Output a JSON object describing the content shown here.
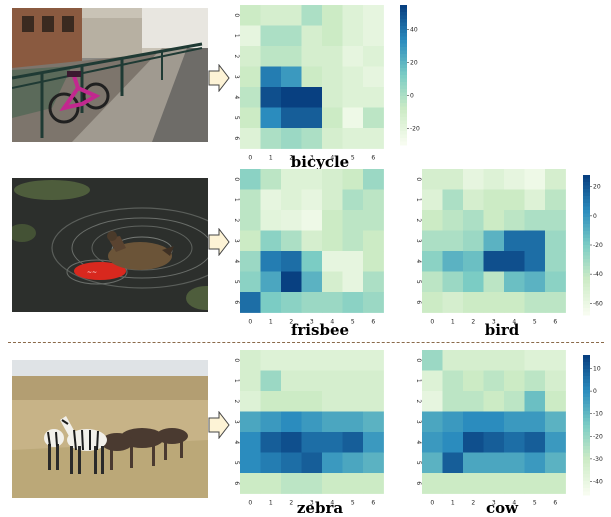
{
  "colors": {
    "low": "#f7fcf0",
    "mid1": "#ccebc5",
    "mid2": "#7bccc4",
    "mid3": "#2b8cbe",
    "high": "#084081"
  },
  "photos": [
    {
      "name": "bicycle-photo-icon"
    },
    {
      "name": "duck-frisbee-photo-icon"
    },
    {
      "name": "zebra-herd-photo-icon"
    }
  ],
  "labels": {
    "bicycle": "bicycle",
    "frisbee": "frisbee",
    "bird": "bird",
    "zebra": "zebra",
    "cow": "cow"
  },
  "ticks": [
    "0",
    "1",
    "2",
    "3",
    "4",
    "5",
    "6"
  ],
  "colorbars": {
    "bicycle": {
      "ticks": [
        "40",
        "20",
        "0",
        "-20"
      ],
      "vmin": -30,
      "vmax": 55
    },
    "bird": {
      "ticks": [
        "20",
        "0",
        "-20",
        "-40",
        "-60"
      ],
      "vmin": -68,
      "vmax": 28
    },
    "cow": {
      "ticks": [
        "10",
        "0",
        "-10",
        "-20",
        "-30",
        "-40"
      ],
      "vmin": -46,
      "vmax": 16
    }
  },
  "chart_data": [
    {
      "type": "heatmap",
      "title": "bicycle",
      "values": [
        [
          0.25,
          0.2,
          0.2,
          0.35,
          0.25,
          0.15,
          0.1
        ],
        [
          0.1,
          0.35,
          0.35,
          0.2,
          0.25,
          0.15,
          0.1
        ],
        [
          0.2,
          0.3,
          0.3,
          0.2,
          0.2,
          0.1,
          0.15
        ],
        [
          0.25,
          0.8,
          0.7,
          0.25,
          0.2,
          0.15,
          0.1
        ],
        [
          0.3,
          0.95,
          1.0,
          1.0,
          0.2,
          0.15,
          0.15
        ],
        [
          0.25,
          0.75,
          0.9,
          0.9,
          0.25,
          0.05,
          0.3
        ],
        [
          0.15,
          0.35,
          0.4,
          0.35,
          0.2,
          0.15,
          0.15
        ]
      ]
    },
    {
      "type": "heatmap",
      "title": "frisbee",
      "values": [
        [
          0.45,
          0.3,
          0.15,
          0.15,
          0.2,
          0.25,
          0.4
        ],
        [
          0.3,
          0.1,
          0.15,
          0.1,
          0.2,
          0.35,
          0.3
        ],
        [
          0.3,
          0.12,
          0.1,
          0.05,
          0.25,
          0.3,
          0.3
        ],
        [
          0.25,
          0.45,
          0.35,
          0.2,
          0.25,
          0.3,
          0.25
        ],
        [
          0.4,
          0.8,
          0.85,
          0.5,
          0.1,
          0.1,
          0.25
        ],
        [
          0.45,
          0.65,
          1.0,
          0.6,
          0.2,
          0.1,
          0.35
        ],
        [
          0.85,
          0.5,
          0.45,
          0.4,
          0.4,
          0.45,
          0.4
        ]
      ]
    },
    {
      "type": "heatmap",
      "title": "bird",
      "values": [
        [
          0.2,
          0.2,
          0.1,
          0.15,
          0.1,
          0.05,
          0.2
        ],
        [
          0.15,
          0.35,
          0.2,
          0.25,
          0.25,
          0.15,
          0.3
        ],
        [
          0.25,
          0.3,
          0.35,
          0.25,
          0.3,
          0.35,
          0.35
        ],
        [
          0.35,
          0.35,
          0.4,
          0.6,
          0.85,
          0.85,
          0.4
        ],
        [
          0.45,
          0.6,
          0.55,
          0.95,
          0.95,
          0.85,
          0.4
        ],
        [
          0.3,
          0.4,
          0.5,
          0.3,
          0.55,
          0.6,
          0.45
        ],
        [
          0.25,
          0.2,
          0.25,
          0.25,
          0.25,
          0.3,
          0.3
        ]
      ]
    },
    {
      "type": "heatmap",
      "title": "zebra",
      "values": [
        [
          0.2,
          0.15,
          0.15,
          0.15,
          0.15,
          0.15,
          0.15
        ],
        [
          0.2,
          0.4,
          0.2,
          0.2,
          0.2,
          0.2,
          0.2
        ],
        [
          0.15,
          0.25,
          0.25,
          0.25,
          0.2,
          0.2,
          0.2
        ],
        [
          0.65,
          0.7,
          0.75,
          0.7,
          0.65,
          0.65,
          0.6
        ],
        [
          0.75,
          0.9,
          0.95,
          0.85,
          0.85,
          0.9,
          0.7
        ],
        [
          0.75,
          0.8,
          0.85,
          0.9,
          0.7,
          0.65,
          0.6
        ],
        [
          0.25,
          0.25,
          0.3,
          0.3,
          0.25,
          0.25,
          0.25
        ]
      ]
    },
    {
      "type": "heatmap",
      "title": "cow",
      "values": [
        [
          0.4,
          0.2,
          0.2,
          0.2,
          0.2,
          0.15,
          0.15
        ],
        [
          0.15,
          0.3,
          0.25,
          0.3,
          0.25,
          0.3,
          0.2
        ],
        [
          0.1,
          0.3,
          0.3,
          0.25,
          0.3,
          0.55,
          0.25
        ],
        [
          0.65,
          0.7,
          0.75,
          0.75,
          0.7,
          0.7,
          0.6
        ],
        [
          0.7,
          0.75,
          0.95,
          0.9,
          0.85,
          0.9,
          0.7
        ],
        [
          0.6,
          0.9,
          0.65,
          0.65,
          0.65,
          0.7,
          0.6
        ],
        [
          0.25,
          0.25,
          0.25,
          0.25,
          0.25,
          0.25,
          0.25
        ]
      ]
    }
  ]
}
